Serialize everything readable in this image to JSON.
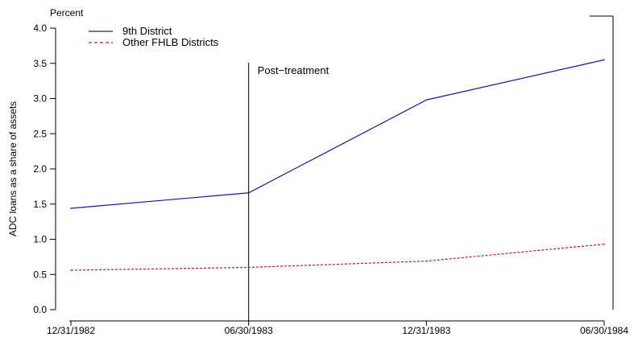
{
  "chart_data": {
    "type": "line",
    "unit_label": "Percent",
    "ylabel": "ADC loans as a share of assets",
    "xlabel": "",
    "categories": [
      "12/31/1982",
      "06/30/1983",
      "12/31/1983",
      "06/30/1984"
    ],
    "ylim": [
      0.0,
      4.0
    ],
    "yticks": [
      "0.0",
      "0.5",
      "1.0",
      "1.5",
      "2.0",
      "2.5",
      "3.0",
      "3.5",
      "4.0"
    ],
    "grid": false,
    "legend_position": "top-left",
    "annotation": {
      "text": "Post−treatment",
      "at_category": "06/30/1983"
    },
    "series": [
      {
        "name": "9th District",
        "values": [
          1.44,
          1.66,
          2.98,
          3.55
        ],
        "color": "#1a1a8c",
        "style": "solid"
      },
      {
        "name": "Other FHLB Districts",
        "values": [
          0.56,
          0.6,
          0.69,
          0.93
        ],
        "color": "#b22222",
        "style": "dashed"
      }
    ]
  }
}
